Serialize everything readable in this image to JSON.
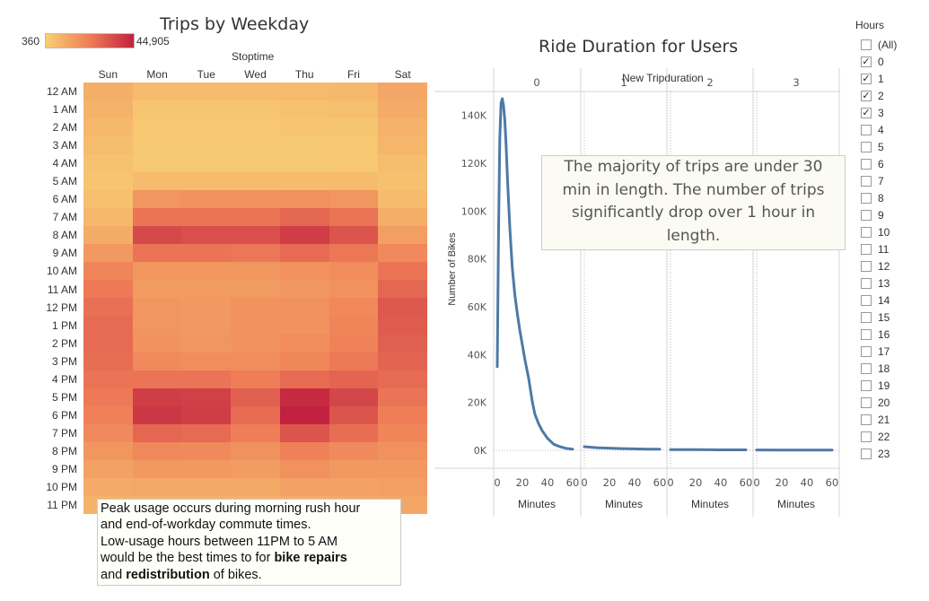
{
  "heatmap": {
    "title": "Trips by Weekday",
    "legend_min": "360",
    "legend_max": "44,905",
    "column_group_label": "Stoptime",
    "days": [
      "Sun",
      "Mon",
      "Tue",
      "Wed",
      "Thu",
      "Fri",
      "Sat"
    ],
    "hours": [
      "12 AM",
      "1 AM",
      "2 AM",
      "3 AM",
      "4 AM",
      "5 AM",
      "6 AM",
      "7 AM",
      "8 AM",
      "9 AM",
      "10 AM",
      "11 AM",
      "12 PM",
      "1 PM",
      "2 PM",
      "3 PM",
      "4 PM",
      "5 PM",
      "6 PM",
      "7 PM",
      "8 PM",
      "9 PM",
      "10 PM",
      "11 PM"
    ],
    "colors": {
      "low": "#f8cf74",
      "mid": "#ef7d57",
      "high": "#c1213f"
    },
    "intensity": [
      [
        0.2,
        0.12,
        0.12,
        0.12,
        0.13,
        0.14,
        0.25
      ],
      [
        0.17,
        0.07,
        0.07,
        0.07,
        0.08,
        0.1,
        0.22
      ],
      [
        0.14,
        0.05,
        0.05,
        0.05,
        0.06,
        0.07,
        0.18
      ],
      [
        0.11,
        0.04,
        0.04,
        0.04,
        0.04,
        0.05,
        0.15
      ],
      [
        0.08,
        0.04,
        0.04,
        0.04,
        0.04,
        0.05,
        0.11
      ],
      [
        0.07,
        0.12,
        0.12,
        0.12,
        0.12,
        0.12,
        0.09
      ],
      [
        0.09,
        0.35,
        0.37,
        0.37,
        0.38,
        0.35,
        0.12
      ],
      [
        0.14,
        0.55,
        0.55,
        0.55,
        0.62,
        0.55,
        0.2
      ],
      [
        0.22,
        0.78,
        0.75,
        0.75,
        0.85,
        0.72,
        0.3
      ],
      [
        0.33,
        0.55,
        0.55,
        0.53,
        0.6,
        0.53,
        0.42
      ],
      [
        0.45,
        0.35,
        0.35,
        0.35,
        0.38,
        0.4,
        0.55
      ],
      [
        0.52,
        0.32,
        0.32,
        0.32,
        0.35,
        0.38,
        0.62
      ],
      [
        0.57,
        0.35,
        0.33,
        0.37,
        0.38,
        0.43,
        0.7
      ],
      [
        0.6,
        0.35,
        0.33,
        0.37,
        0.37,
        0.45,
        0.68
      ],
      [
        0.6,
        0.37,
        0.35,
        0.37,
        0.4,
        0.47,
        0.66
      ],
      [
        0.58,
        0.42,
        0.4,
        0.4,
        0.44,
        0.52,
        0.63
      ],
      [
        0.55,
        0.55,
        0.55,
        0.5,
        0.6,
        0.63,
        0.6
      ],
      [
        0.52,
        0.85,
        0.83,
        0.65,
        0.95,
        0.8,
        0.55
      ],
      [
        0.48,
        0.88,
        0.85,
        0.6,
        1.0,
        0.72,
        0.5
      ],
      [
        0.42,
        0.62,
        0.6,
        0.5,
        0.72,
        0.58,
        0.45
      ],
      [
        0.35,
        0.43,
        0.42,
        0.38,
        0.48,
        0.42,
        0.38
      ],
      [
        0.28,
        0.33,
        0.33,
        0.31,
        0.38,
        0.33,
        0.33
      ],
      [
        0.22,
        0.24,
        0.24,
        0.24,
        0.28,
        0.28,
        0.3
      ],
      [
        0.17,
        0.18,
        0.18,
        0.19,
        0.2,
        0.22,
        0.25
      ]
    ],
    "note_lines": [
      [
        {
          "t": "Peak usage occurs during morning rush hour",
          "b": false
        }
      ],
      [
        {
          "t": "and end-of-workday commute times.",
          "b": false
        }
      ],
      [
        {
          "t": "Low-usage hours between 11PM to 5 AM",
          "b": false
        }
      ],
      [
        {
          "t": "would be the best times to for ",
          "b": false
        },
        {
          "t": "bike repairs",
          "b": true
        }
      ],
      [
        {
          "t": "and ",
          "b": false
        },
        {
          "t": "redistribution",
          "b": true
        },
        {
          "t": " of bikes.",
          "b": false
        }
      ]
    ]
  },
  "duration": {
    "title": "Ride Duration for Users",
    "column_header": "New Tripduration",
    "ylabel": "Number of Bikes",
    "xlabel": "Minutes",
    "annotation": "The majority of trips are under 30 min in length. The number of trips significantly drop over 1 hour in length.",
    "line_color": "#4e79a7"
  },
  "chart_data": {
    "type": "line",
    "title": "Ride Duration for Users",
    "xlabel": "Minutes",
    "ylabel": "Number of Bikes",
    "ylim": [
      0,
      150000
    ],
    "y_ticks": [
      "0K",
      "20K",
      "40K",
      "60K",
      "80K",
      "100K",
      "120K",
      "140K"
    ],
    "x_ticks": [
      "0",
      "20",
      "40",
      "60"
    ],
    "panels": [
      "0",
      "1",
      "2",
      "3"
    ],
    "series": [
      {
        "panel": "0",
        "x": [
          0,
          1,
          2,
          3,
          4,
          5,
          6,
          7,
          8,
          10,
          12,
          14,
          16,
          18,
          20,
          22,
          25,
          28,
          30,
          33,
          36,
          40,
          45,
          50,
          55,
          60
        ],
        "y": [
          35000,
          90000,
          130000,
          145000,
          147000,
          144000,
          138000,
          128000,
          115000,
          93000,
          76000,
          65000,
          57000,
          50000,
          44000,
          38000,
          30000,
          20000,
          15000,
          11000,
          8000,
          5000,
          2500,
          1500,
          800,
          500
        ]
      },
      {
        "panel": "1",
        "x": [
          0,
          10,
          20,
          30,
          40,
          50,
          60
        ],
        "y": [
          1500,
          1100,
          900,
          700,
          600,
          500,
          450
        ]
      },
      {
        "panel": "2",
        "x": [
          0,
          20,
          40,
          60
        ],
        "y": [
          300,
          250,
          200,
          180
        ]
      },
      {
        "panel": "3",
        "x": [
          0,
          20,
          40,
          60
        ],
        "y": [
          150,
          130,
          110,
          100
        ]
      }
    ]
  },
  "filter": {
    "title": "Hours",
    "items": [
      {
        "label": "(All)",
        "checked": false
      },
      {
        "label": "0",
        "checked": true
      },
      {
        "label": "1",
        "checked": true
      },
      {
        "label": "2",
        "checked": true
      },
      {
        "label": "3",
        "checked": true
      },
      {
        "label": "4",
        "checked": false
      },
      {
        "label": "5",
        "checked": false
      },
      {
        "label": "6",
        "checked": false
      },
      {
        "label": "7",
        "checked": false
      },
      {
        "label": "8",
        "checked": false
      },
      {
        "label": "9",
        "checked": false
      },
      {
        "label": "10",
        "checked": false
      },
      {
        "label": "11",
        "checked": false
      },
      {
        "label": "12",
        "checked": false
      },
      {
        "label": "13",
        "checked": false
      },
      {
        "label": "14",
        "checked": false
      },
      {
        "label": "15",
        "checked": false
      },
      {
        "label": "16",
        "checked": false
      },
      {
        "label": "17",
        "checked": false
      },
      {
        "label": "18",
        "checked": false
      },
      {
        "label": "19",
        "checked": false
      },
      {
        "label": "20",
        "checked": false
      },
      {
        "label": "21",
        "checked": false
      },
      {
        "label": "22",
        "checked": false
      },
      {
        "label": "23",
        "checked": false
      }
    ]
  }
}
